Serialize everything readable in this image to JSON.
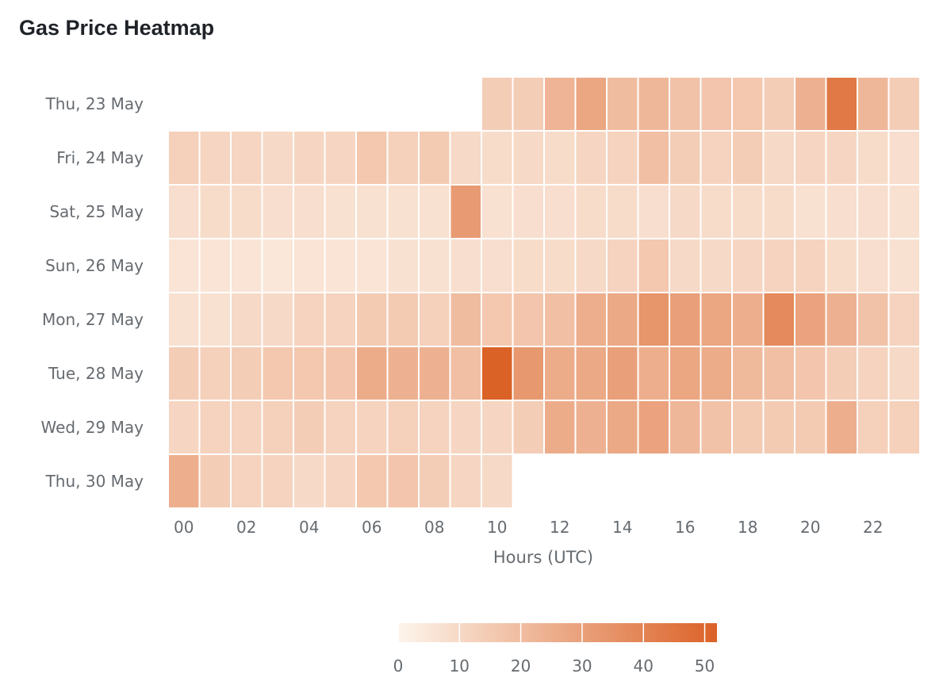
{
  "title": "Gas Price Heatmap",
  "chart_data": {
    "type": "heatmap",
    "title": "Gas Price Heatmap",
    "xlabel": "Hours (UTC)",
    "ylabel": "",
    "x_categories": [
      "00",
      "01",
      "02",
      "03",
      "04",
      "05",
      "06",
      "07",
      "08",
      "09",
      "10",
      "11",
      "12",
      "13",
      "14",
      "15",
      "16",
      "17",
      "18",
      "19",
      "20",
      "21",
      "22",
      "23"
    ],
    "x_tick_labels": [
      "00",
      "02",
      "04",
      "06",
      "08",
      "10",
      "12",
      "14",
      "16",
      "18",
      "20",
      "22"
    ],
    "y_categories": [
      "Thu, 23 May",
      "Fri, 24 May",
      "Sat, 25 May",
      "Sun, 26 May",
      "Mon, 27 May",
      "Tue, 28 May",
      "Wed, 29 May",
      "Thu, 30 May"
    ],
    "values": [
      [
        null,
        null,
        null,
        null,
        null,
        null,
        null,
        null,
        null,
        null,
        14,
        14,
        23,
        28,
        20,
        22,
        18,
        17,
        16,
        14,
        24,
        44,
        22,
        14
      ],
      [
        13,
        11,
        11,
        10,
        11,
        11,
        16,
        13,
        15,
        10,
        9,
        10,
        9,
        11,
        12,
        19,
        14,
        12,
        14,
        10,
        11,
        11,
        9,
        8
      ],
      [
        8,
        9,
        9,
        8,
        8,
        7,
        7,
        7,
        7,
        32,
        7,
        8,
        8,
        9,
        9,
        8,
        10,
        9,
        9,
        9,
        7,
        8,
        8,
        7
      ],
      [
        6,
        6,
        6,
        5,
        6,
        6,
        6,
        7,
        7,
        8,
        8,
        9,
        9,
        10,
        12,
        16,
        10,
        10,
        11,
        12,
        12,
        9,
        8,
        7
      ],
      [
        7,
        7,
        10,
        10,
        12,
        12,
        15,
        15,
        13,
        20,
        16,
        17,
        19,
        25,
        27,
        34,
        30,
        28,
        25,
        38,
        29,
        24,
        18,
        12
      ],
      [
        14,
        13,
        14,
        16,
        16,
        17,
        26,
        24,
        24,
        19,
        52,
        33,
        26,
        27,
        30,
        25,
        28,
        26,
        21,
        19,
        17,
        14,
        12,
        10
      ],
      [
        11,
        12,
        12,
        13,
        14,
        12,
        12,
        13,
        12,
        11,
        11,
        14,
        26,
        24,
        27,
        29,
        22,
        18,
        15,
        15,
        15,
        25,
        13,
        13
      ],
      [
        25,
        14,
        12,
        12,
        10,
        11,
        16,
        17,
        14,
        11,
        10,
        null,
        null,
        null,
        null,
        null,
        null,
        null,
        null,
        null,
        null,
        null,
        null,
        null
      ]
    ],
    "colorbar": {
      "min": 0,
      "max": 52,
      "ticks": [
        0,
        10,
        20,
        30,
        40,
        50
      ],
      "color_low": "#fdf5ec",
      "color_high": "#db6227"
    },
    "grid": false,
    "legend": "bottom-center"
  }
}
